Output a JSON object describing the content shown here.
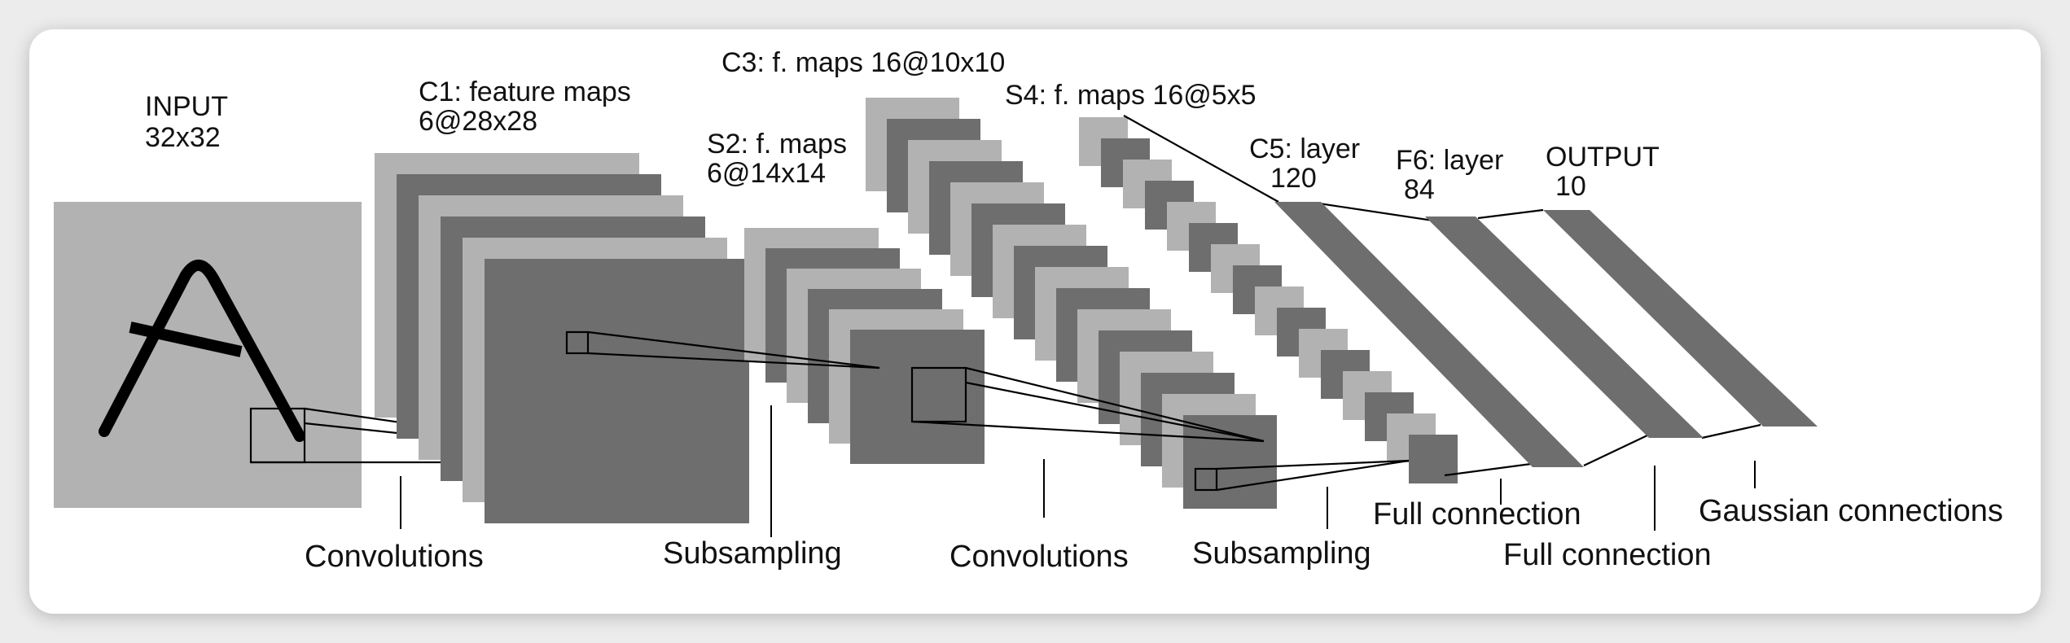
{
  "colors": {
    "light": "#b2b2b2",
    "dark": "#6e6e6e",
    "line": "#000000",
    "card": "#ffffff",
    "page": "#ececec"
  },
  "layers": {
    "input": {
      "title": "INPUT",
      "size": "32x32"
    },
    "c1": {
      "title": "C1: feature maps",
      "size": "6@28x28",
      "count": 6
    },
    "s2": {
      "title": "S2: f. maps",
      "size": "6@14x14",
      "count": 6
    },
    "c3": {
      "title": "C3: f. maps 16@10x10",
      "count": 16
    },
    "s4": {
      "title": "S4: f. maps 16@5x5",
      "count": 16
    },
    "c5": {
      "title": "C5: layer",
      "size": "120"
    },
    "f6": {
      "title": "F6: layer",
      "size": "84"
    },
    "output": {
      "title": "OUTPUT",
      "size": "10"
    }
  },
  "operations": {
    "conv1": "Convolutions",
    "sub1": "Subsampling",
    "conv2": "Convolutions",
    "sub2": "Subsampling",
    "full1": "Full connection",
    "full2": "Full connection",
    "gauss": "Gaussian connections"
  }
}
